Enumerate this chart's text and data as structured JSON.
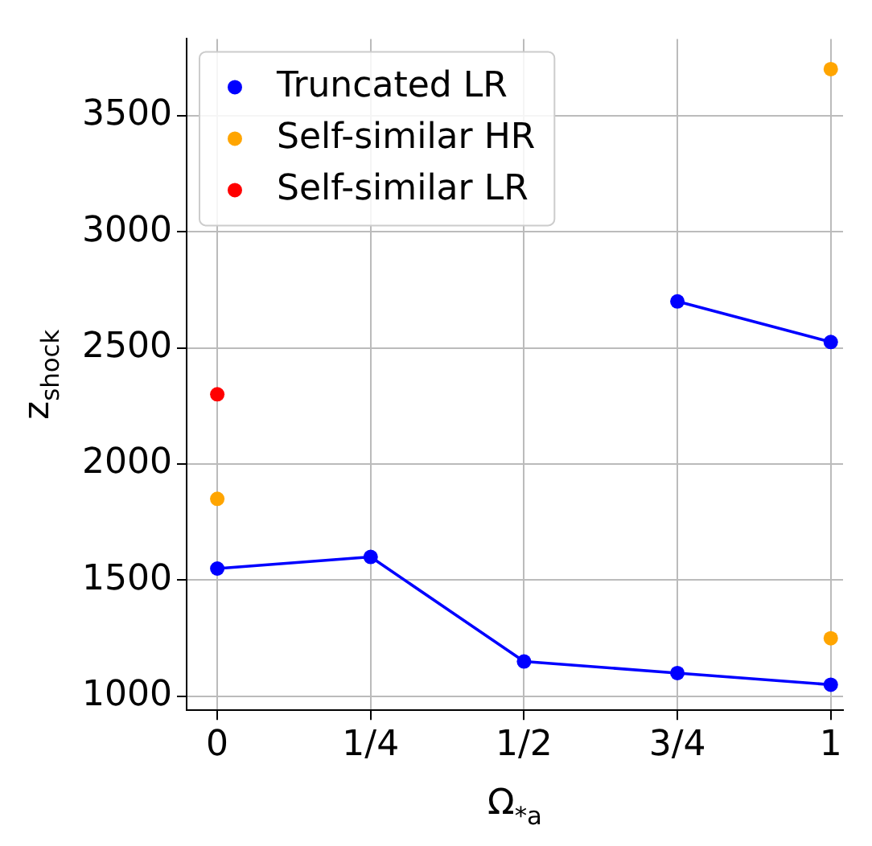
{
  "chart_data": {
    "type": "line",
    "xlabel": "Ω$_{*a}$",
    "ylabel": "z$_{shock}$",
    "xlim": [
      -0.05,
      1.02
    ],
    "xticks": [
      {
        "value": 0,
        "label": "0"
      },
      {
        "value": 0.25,
        "label": "1/4"
      },
      {
        "value": 0.5,
        "label": "1/2"
      },
      {
        "value": 0.75,
        "label": "3/4"
      },
      {
        "value": 1,
        "label": "1"
      }
    ],
    "ylim": [
      940,
      3830
    ],
    "yticks": [
      1000,
      1500,
      2000,
      2500,
      3000,
      3500
    ],
    "grid": true,
    "legend": "top left",
    "marker": "circle",
    "line_style": "solid",
    "series": [
      {
        "name": "Truncated LR",
        "color": "#0000ff",
        "x": [
          0,
          0.25,
          0.5,
          0.75,
          1
        ],
        "values": [
          1550,
          1600,
          1150,
          1100,
          1050
        ]
      },
      {
        "color": "#0000ff",
        "x": [
          0.75,
          1
        ],
        "values": [
          2700,
          2525
        ]
      },
      {
        "name": "Self-similar HR",
        "color": "#ffa500",
        "type": "scatter",
        "x": [
          0,
          1,
          1
        ],
        "values": [
          1850,
          3700,
          1250
        ]
      },
      {
        "name": "Self-similar LR",
        "color": "#ff0000",
        "type": "scatter",
        "x": [
          0
        ],
        "values": [
          2300
        ]
      }
    ]
  }
}
